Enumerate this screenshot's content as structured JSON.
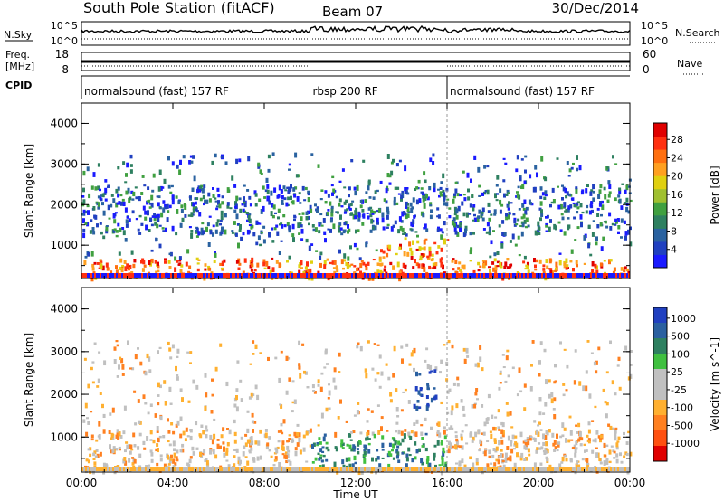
{
  "header": {
    "station": "South Pole Station (fitACF)",
    "beam": "Beam 07",
    "date": "30/Dec/2014"
  },
  "strips": {
    "nsky_label": "N.Sky",
    "nsky_ticks": [
      "10^5",
      "10^0"
    ],
    "nsearch_label": "N.Search",
    "nsearch_ticks": [
      "10^5",
      "10^0"
    ],
    "freq_label_top": "Freq.",
    "freq_label_bottom": "[MHz]",
    "freq_ticks": [
      "18",
      "8"
    ],
    "nave_label": "Nave",
    "nave_ticks": [
      "60",
      "0"
    ],
    "cpid_label": "CPID",
    "cpid_segments": [
      {
        "label": "normalsound (fast) 157 RF",
        "start_hour": 0,
        "end_hour": 10
      },
      {
        "label": "rbsp 200 RF",
        "start_hour": 10,
        "end_hour": 16
      },
      {
        "label": "normalsound (fast) 157 RF",
        "start_hour": 16,
        "end_hour": 24
      }
    ]
  },
  "chart_data": [
    {
      "type": "heatmap",
      "panel": "power",
      "ylabel": "Slant Range [km]",
      "xlabel": "Time UT",
      "xlim": [
        0,
        24
      ],
      "ylim": [
        180,
        4500
      ],
      "xticks": [
        "00:00",
        "04:00",
        "08:00",
        "12:00",
        "16:00",
        "20:00",
        "00:00"
      ],
      "yticks": [
        1000,
        2000,
        3000,
        4000
      ],
      "colorbar": {
        "label": "Power [dB]",
        "ticks": [
          "4",
          "8",
          "12",
          "16",
          "20",
          "24",
          "28"
        ],
        "colors": [
          "#1a1aff",
          "#2040c0",
          "#2a62a0",
          "#2e8060",
          "#40a040",
          "#a0c030",
          "#e0d010",
          "#ffa020",
          "#ff7010",
          "#ff3010",
          "#e00000"
        ]
      },
      "features": [
        {
          "hour_start": 0.0,
          "hour_end": 24.0,
          "range_start": 200,
          "range_end": 700,
          "level": "20-28 dB"
        },
        {
          "hour_start": 13.0,
          "hour_end": 16.0,
          "range_start": 400,
          "range_end": 1200,
          "level": "20-28 dB"
        },
        {
          "hour_start": 0.0,
          "hour_end": 24.0,
          "range_start": 1300,
          "range_end": 2500,
          "level": "4-12 dB"
        }
      ]
    },
    {
      "type": "heatmap",
      "panel": "velocity",
      "ylabel": "Slant Range [km]",
      "xlabel": "Time UT",
      "xlim": [
        0,
        24
      ],
      "ylim": [
        180,
        4500
      ],
      "xticks": [
        "00:00",
        "04:00",
        "08:00",
        "12:00",
        "16:00",
        "20:00",
        "00:00"
      ],
      "yticks": [
        1000,
        2000,
        3000,
        4000
      ],
      "colorbar": {
        "label": "Velocity [m s^-1]",
        "ticks": [
          "1000",
          "500",
          "100",
          "25",
          "-25",
          "-100",
          "-500",
          "-1000"
        ],
        "colors": [
          "#2040c0",
          "#2a60a0",
          "#2e8060",
          "#40c040",
          "#c0c0c0",
          "#c0c0c0",
          "#ffb030",
          "#ff8020",
          "#ff5010",
          "#e00000"
        ]
      },
      "features": [
        {
          "hour_start": 0.0,
          "hour_end": 24.0,
          "range_start": 200,
          "range_end": 1200,
          "level": "-100 to -500 m/s"
        },
        {
          "hour_start": 10.0,
          "hour_end": 16.0,
          "range_start": 300,
          "range_end": 1100,
          "level": "25 to 500 m/s"
        },
        {
          "hour_start": 14.5,
          "hour_end": 15.5,
          "range_start": 1700,
          "range_end": 2600,
          "level": "500 to 1000 m/s"
        }
      ]
    }
  ]
}
